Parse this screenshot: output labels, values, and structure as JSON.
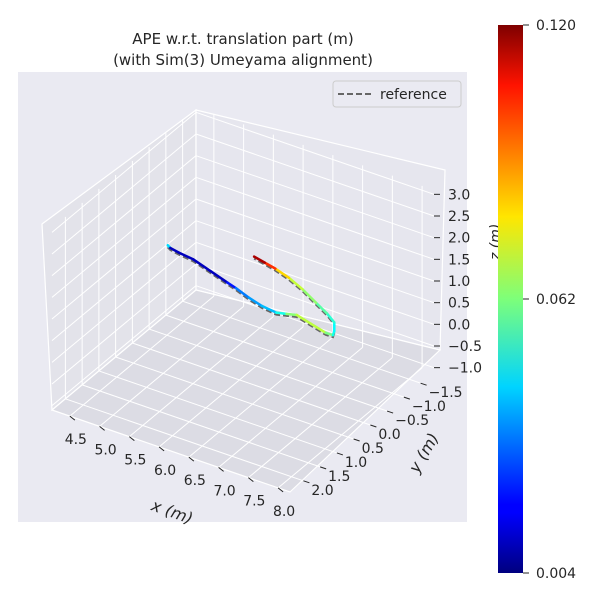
{
  "chart_data": {
    "type": "line3d",
    "title_line1": "APE w.r.t. translation part (m)",
    "title_line2": "(with Sim(3) Umeyama alignment)",
    "xlabel": "x (m)",
    "ylabel": "y (m)",
    "zlabel": "z (m)",
    "x_ticks": [
      "4.5",
      "5.0",
      "5.5",
      "6.0",
      "6.5",
      "7.0",
      "7.5",
      "8.0"
    ],
    "y_ticks": [
      "−1.5",
      "−1.0",
      "−0.5",
      "0.0",
      "0.5",
      "1.0",
      "1.5",
      "2.0"
    ],
    "z_ticks": [
      "−1.0",
      "−0.5",
      "0.0",
      "0.5",
      "1.0",
      "1.5",
      "2.0",
      "2.5",
      "3.0"
    ],
    "xlim": [
      4.2,
      8.2
    ],
    "ylim": [
      -1.9,
      2.4
    ],
    "zlim": [
      -1.1,
      3.1
    ],
    "legend": {
      "label": "reference",
      "placement": "top-right"
    },
    "colorbar": {
      "colormap": "jet",
      "min_label": "0.004",
      "mid_label": "0.062",
      "max_label": "0.120",
      "min": 0.004,
      "max": 0.12
    },
    "reference_style": {
      "color": "#666666",
      "dash": "dashed"
    },
    "trajectory": [
      {
        "x": 4.4,
        "y": -0.7,
        "z": 0.8,
        "ape": 0.075
      },
      {
        "x": 4.5,
        "y": -0.6,
        "z": 0.85,
        "ape": 0.012
      },
      {
        "x": 4.7,
        "y": -0.5,
        "z": 0.9,
        "ape": 0.01
      },
      {
        "x": 5.0,
        "y": -0.4,
        "z": 0.95,
        "ape": 0.012
      },
      {
        "x": 5.4,
        "y": -0.2,
        "z": 1.0,
        "ape": 0.01
      },
      {
        "x": 5.8,
        "y": 0.0,
        "z": 1.05,
        "ape": 0.012
      },
      {
        "x": 6.0,
        "y": 0.1,
        "z": 1.08,
        "ape": 0.03
      },
      {
        "x": 6.3,
        "y": 0.25,
        "z": 1.1,
        "ape": 0.035
      },
      {
        "x": 6.6,
        "y": 0.4,
        "z": 1.15,
        "ape": 0.038
      },
      {
        "x": 6.9,
        "y": 0.5,
        "z": 1.2,
        "ape": 0.042
      },
      {
        "x": 7.1,
        "y": 0.55,
        "z": 1.3,
        "ape": 0.058
      },
      {
        "x": 7.3,
        "y": 0.6,
        "z": 1.4,
        "ape": 0.068
      },
      {
        "x": 7.6,
        "y": 0.7,
        "z": 1.4,
        "ape": 0.07
      },
      {
        "x": 7.9,
        "y": 0.8,
        "z": 1.4,
        "ape": 0.068
      },
      {
        "x": 8.05,
        "y": 0.85,
        "z": 1.45,
        "ape": 0.055
      },
      {
        "x": 8.1,
        "y": 0.9,
        "z": 1.6,
        "ape": 0.045
      },
      {
        "x": 8.1,
        "y": 0.9,
        "z": 1.8,
        "ape": 0.05
      },
      {
        "x": 8.0,
        "y": 0.95,
        "z": 2.0,
        "ape": 0.055
      },
      {
        "x": 7.85,
        "y": 1.0,
        "z": 2.2,
        "ape": 0.06
      },
      {
        "x": 7.65,
        "y": 1.05,
        "z": 2.45,
        "ape": 0.068
      },
      {
        "x": 7.45,
        "y": 1.1,
        "z": 2.65,
        "ape": 0.072
      },
      {
        "x": 7.25,
        "y": 1.15,
        "z": 2.8,
        "ape": 0.09
      },
      {
        "x": 7.1,
        "y": 1.2,
        "z": 2.9,
        "ape": 0.11
      },
      {
        "x": 6.95,
        "y": 1.25,
        "z": 3.0,
        "ape": 0.12
      }
    ]
  }
}
